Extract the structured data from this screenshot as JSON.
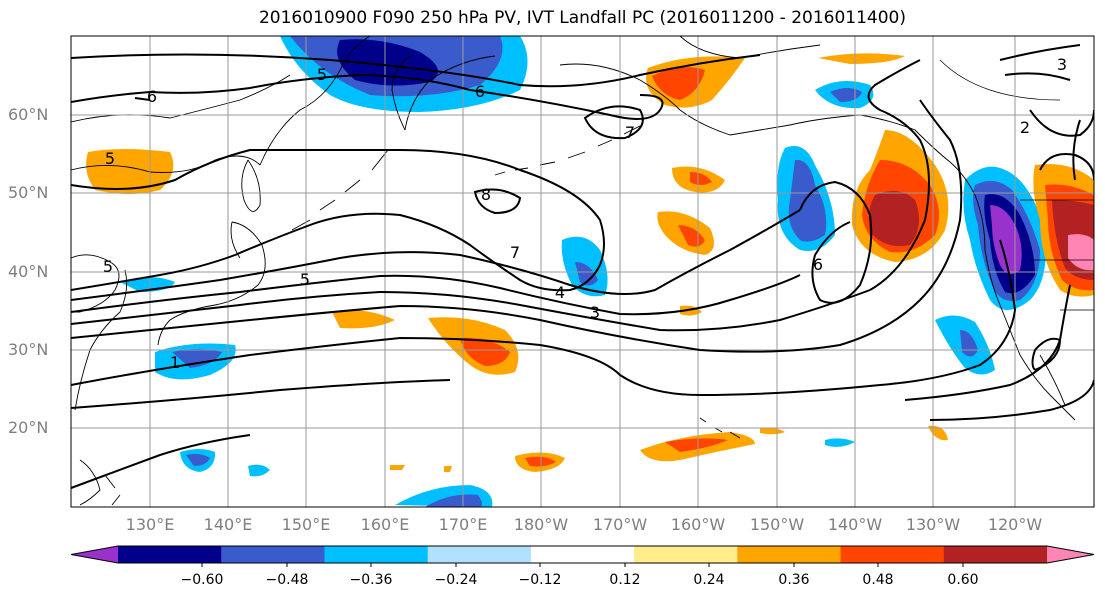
{
  "title": "2016010900 F090 250 hPa PV, IVT Landfall PC (2016011200 - 2016011400)",
  "lat_labels": [
    "60°N",
    "50°N",
    "40°N",
    "30°N",
    "20°N"
  ],
  "lon_labels": [
    "130°E",
    "140°E",
    "150°E",
    "160°E",
    "170°E",
    "180°W",
    "170°W",
    "160°W",
    "150°W",
    "140°W",
    "130°W",
    "120°W"
  ],
  "contour_labels": [
    "5",
    "6",
    "6",
    "5",
    "7",
    "8",
    "7",
    "5",
    "4",
    "3",
    "1",
    "6",
    "5",
    "2",
    "3"
  ],
  "colorbar": {
    "tick_labels": [
      "−0.60",
      "−0.48",
      "−0.36",
      "−0.24",
      "−0.12",
      "0.12",
      "0.24",
      "0.36",
      "0.48",
      "0.60"
    ],
    "colors": [
      "#9932cc",
      "#00008b",
      "#3a5bcc",
      "#00bfff",
      "#b0e2ff",
      "#ffffff",
      "#ffec8b",
      "#ffa500",
      "#ff4500",
      "#b22222",
      "#ff86b4"
    ]
  }
}
